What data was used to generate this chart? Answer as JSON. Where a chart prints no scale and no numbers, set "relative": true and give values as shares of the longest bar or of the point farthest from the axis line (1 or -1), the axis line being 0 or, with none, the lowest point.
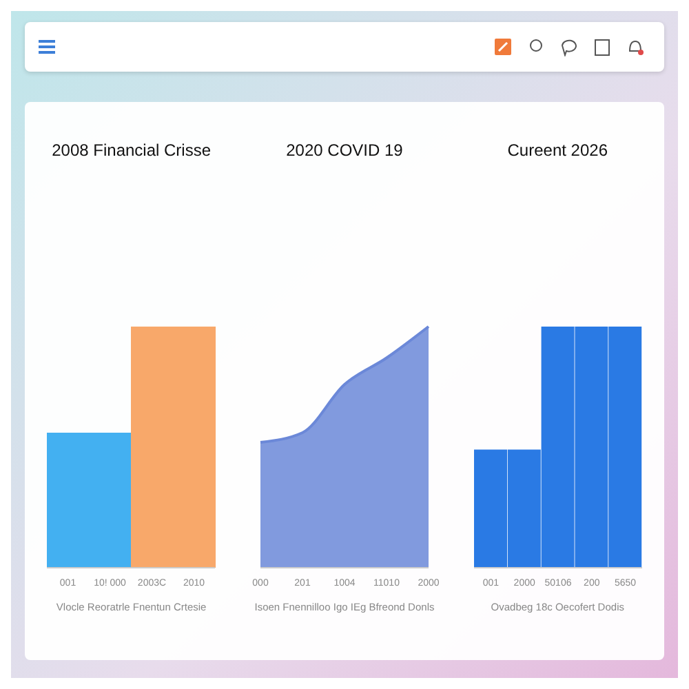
{
  "chart_data": [
    {
      "type": "bar",
      "title": "2008 Financial Crisse",
      "xlabel": "Vlocle Reoratrle Fnentun Crtesie",
      "categories": [
        "001",
        "10! 000",
        "2003C",
        "2010"
      ],
      "values": [
        0.56,
        0.56,
        1,
        1
      ],
      "colors": [
        "#43b0f1",
        "#43b0f1",
        "#f8a86a",
        "#f8a86a"
      ],
      "relative": true
    },
    {
      "type": "area",
      "title": "2020 COVID 19",
      "xlabel": "Isoen Fnennilloo Igo IEg Bfreond Donls",
      "categories": [
        "000",
        "201",
        "1004",
        "11010",
        "2000"
      ],
      "values": [
        0.52,
        0.56,
        0.76,
        0.87,
        1
      ],
      "color": "#6b88d8",
      "relative": true
    },
    {
      "type": "bar",
      "title": "Cureent 2026",
      "xlabel": "Ovadbeg 18c Oecofert Dodis",
      "categories": [
        "001",
        "2000",
        "50106",
        "200",
        "5650"
      ],
      "values": [
        0.49,
        0.49,
        1,
        1,
        1
      ],
      "colors": [
        "#2a7ae4",
        "#2a7ae4",
        "#2a7ae4",
        "#2a7ae4",
        "#2a7ae4"
      ],
      "relative": true
    }
  ]
}
